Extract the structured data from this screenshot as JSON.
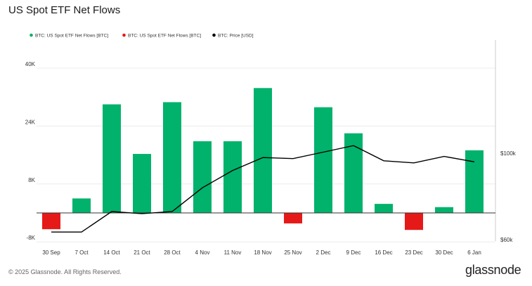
{
  "chart_data": {
    "type": "bar",
    "title": "US Spot ETF Net Flows",
    "categories": [
      "30 Sep",
      "7 Oct",
      "14 Oct",
      "21 Oct",
      "28 Oct",
      "4 Nov",
      "11 Nov",
      "18 Nov",
      "25 Nov",
      "2 Dec",
      "9 Dec",
      "16 Dec",
      "23 Dec",
      "30 Dec",
      "6 Jan"
    ],
    "series": [
      {
        "name": "BTC: US Spot ETF Net Flows [BTC]",
        "kind": "bar",
        "color": "#00b26b",
        "negative_color": "#e61919",
        "values": [
          -4500,
          4000,
          30000,
          16300,
          30600,
          19800,
          19800,
          34500,
          -2900,
          29200,
          22000,
          2500,
          -4700,
          1600,
          17300
        ]
      },
      {
        "name": "BTC: Price [USD]",
        "kind": "line",
        "axis": "right",
        "color": "#000000",
        "values": [
          63500,
          63500,
          73000,
          72000,
          73000,
          84000,
          92000,
          98000,
          97500,
          100500,
          103500,
          96500,
          95500,
          98500,
          96000
        ]
      }
    ],
    "left_axis": {
      "ticks": [
        -8000,
        8000,
        24000,
        40000
      ],
      "tick_labels": [
        "-8K",
        "8K",
        "24K",
        "40K"
      ],
      "ylim": [
        -8000,
        48000
      ]
    },
    "right_axis": {
      "ticks": [
        60000,
        100000
      ],
      "tick_labels": [
        "$60k",
        "$100k"
      ],
      "ylim": [
        53000,
        120000
      ]
    },
    "grid": true,
    "legend": "top-left"
  },
  "footer": {
    "copyright": "© 2025 Glassnode. All Rights Reserved.",
    "brand": "glassnode"
  }
}
